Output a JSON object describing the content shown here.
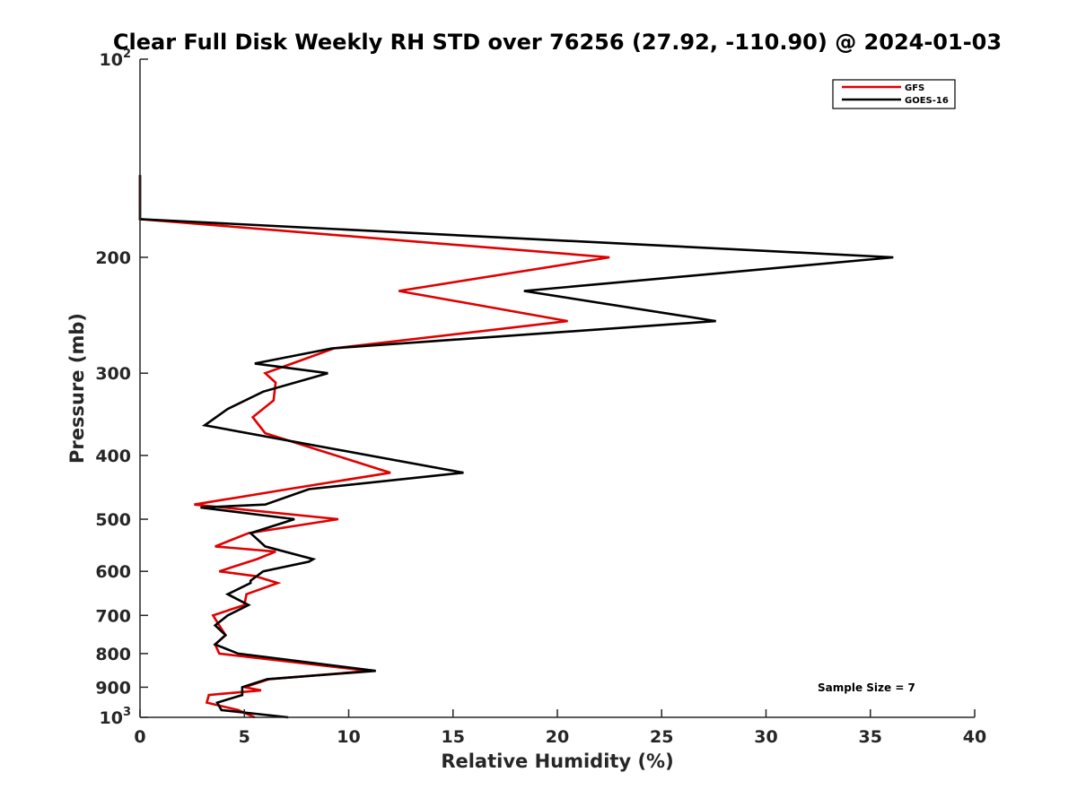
{
  "chart_data": {
    "type": "line",
    "title": "Clear Full Disk Weekly RH STD over 76256 (27.92, -110.90) @ 2024-01-03",
    "xlabel": "Relative Humidity (%)",
    "ylabel": "Pressure (mb)",
    "xlim": [
      0,
      40
    ],
    "ylim": [
      100,
      1000
    ],
    "yscale": "log",
    "yreversed": true,
    "x_ticks": [
      "0",
      "5",
      "10",
      "15",
      "20",
      "25",
      "30",
      "35",
      "40"
    ],
    "y_ticks": [
      {
        "value": 100,
        "base": "10",
        "exp": "2"
      },
      {
        "value": 200,
        "label": "200"
      },
      {
        "value": 300,
        "label": "300"
      },
      {
        "value": 400,
        "label": "400"
      },
      {
        "value": 500,
        "label": "500"
      },
      {
        "value": 600,
        "label": "600"
      },
      {
        "value": 700,
        "label": "700"
      },
      {
        "value": 800,
        "label": "800"
      },
      {
        "value": 900,
        "label": "900"
      },
      {
        "value": 1000,
        "base": "10",
        "exp": "3"
      }
    ],
    "legend_position": "top-right",
    "annotation": "Sample Size = 7",
    "series": [
      {
        "name": "GFS",
        "color": "#e00000",
        "points": [
          [
            0,
            150
          ],
          [
            0,
            175
          ],
          [
            22.5,
            200
          ],
          [
            12.4,
            225
          ],
          [
            20.5,
            250
          ],
          [
            9.3,
            275
          ],
          [
            7.3,
            290
          ],
          [
            6,
            300
          ],
          [
            6.5,
            310
          ],
          [
            6.4,
            330
          ],
          [
            5.4,
            350
          ],
          [
            6,
            370
          ],
          [
            12,
            425
          ],
          [
            7.1,
            450
          ],
          [
            2.6,
            475
          ],
          [
            9.5,
            500
          ],
          [
            5.2,
            525
          ],
          [
            3.6,
            550
          ],
          [
            6.5,
            560
          ],
          [
            5.6,
            575
          ],
          [
            3.8,
            600
          ],
          [
            5.5,
            610
          ],
          [
            6.6,
            625
          ],
          [
            5.1,
            650
          ],
          [
            5,
            675
          ],
          [
            3.5,
            700
          ],
          [
            3.8,
            725
          ],
          [
            4.1,
            750
          ],
          [
            3.6,
            775
          ],
          [
            3.8,
            800
          ],
          [
            11,
            850
          ],
          [
            6.2,
            875
          ],
          [
            5,
            900
          ],
          [
            5.8,
            910
          ],
          [
            3.3,
            925
          ],
          [
            3.2,
            950
          ],
          [
            4.7,
            975
          ],
          [
            5.5,
            1000
          ]
        ]
      },
      {
        "name": "GOES-16",
        "color": "#000000",
        "points": [
          [
            0,
            150
          ],
          [
            0,
            175
          ],
          [
            36.1,
            200
          ],
          [
            18.4,
            225
          ],
          [
            27.6,
            250
          ],
          [
            9.2,
            275
          ],
          [
            5.5,
            290
          ],
          [
            9,
            300
          ],
          [
            5.9,
            320
          ],
          [
            4.2,
            340
          ],
          [
            3.1,
            360
          ],
          [
            15.5,
            425
          ],
          [
            8.1,
            450
          ],
          [
            6,
            475
          ],
          [
            2.9,
            480
          ],
          [
            7.4,
            500
          ],
          [
            5.3,
            525
          ],
          [
            6,
            550
          ],
          [
            8.3,
            575
          ],
          [
            8.1,
            580
          ],
          [
            5.9,
            600
          ],
          [
            5.3,
            620
          ],
          [
            5.3,
            625
          ],
          [
            4.2,
            650
          ],
          [
            5.2,
            675
          ],
          [
            4.2,
            700
          ],
          [
            3.6,
            725
          ],
          [
            4.1,
            750
          ],
          [
            3.6,
            775
          ],
          [
            4.7,
            800
          ],
          [
            11.3,
            850
          ],
          [
            6.1,
            875
          ],
          [
            4.9,
            900
          ],
          [
            4.9,
            925
          ],
          [
            3.7,
            950
          ],
          [
            3.9,
            975
          ],
          [
            7.1,
            1000
          ]
        ]
      }
    ]
  }
}
